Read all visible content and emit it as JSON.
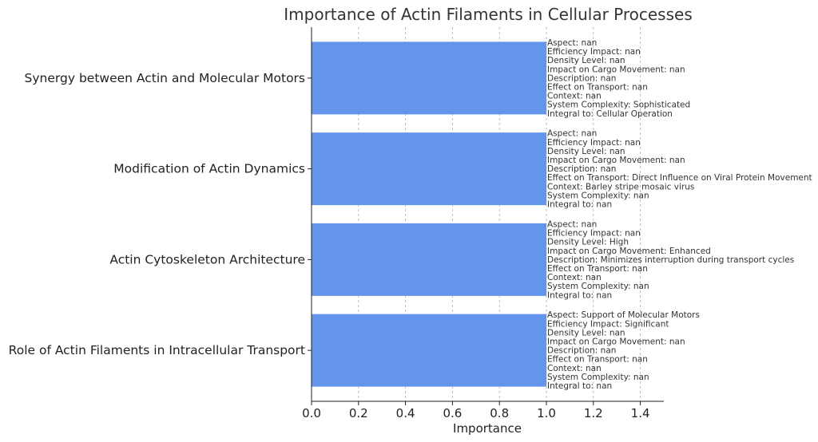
{
  "chart_data": {
    "type": "bar",
    "orientation": "horizontal",
    "title": "Importance of Actin Filaments in Cellular Processes",
    "xlabel": "Importance",
    "ylabel": "",
    "xlim": [
      0,
      1.5
    ],
    "xticks": [
      "0.0",
      "0.2",
      "0.4",
      "0.6",
      "0.8",
      "1.0",
      "1.2",
      "1.4"
    ],
    "xtick_values": [
      0,
      0.2,
      0.4,
      0.6,
      0.8,
      1.0,
      1.2,
      1.4
    ],
    "grid": true,
    "bar_color": "#6495ED",
    "categories": [
      "Role of Actin Filaments in Intracellular Transport",
      "Actin Cytoskeleton Architecture",
      "Modification of Actin Dynamics",
      "Synergy between Actin and Molecular Motors"
    ],
    "values": [
      1,
      1,
      1,
      1
    ],
    "annotations": [
      [
        "Aspect: Support of Molecular Motors",
        "Efficiency Impact: Significant",
        "Density Level: nan",
        "Impact on Cargo Movement: nan",
        "Description: nan",
        "Effect on Transport: nan",
        "Context: nan",
        "System Complexity: nan",
        "Integral to: nan"
      ],
      [
        "Aspect: nan",
        "Efficiency Impact: nan",
        "Density Level: High",
        "Impact on Cargo Movement: Enhanced",
        "Description: Minimizes interruption during transport cycles",
        "Effect on Transport: nan",
        "Context: nan",
        "System Complexity: nan",
        "Integral to: nan"
      ],
      [
        "Aspect: nan",
        "Efficiency Impact: nan",
        "Density Level: nan",
        "Impact on Cargo Movement: nan",
        "Description: nan",
        "Effect on Transport: Direct Influence on Viral Protein Movement",
        "Context: Barley stripe mosaic virus",
        "System Complexity: nan",
        "Integral to: nan"
      ],
      [
        "Aspect: nan",
        "Efficiency Impact: nan",
        "Density Level: nan",
        "Impact on Cargo Movement: nan",
        "Description: nan",
        "Effect on Transport: nan",
        "Context: nan",
        "System Complexity: Sophisticated",
        "Integral to: Cellular Operation"
      ]
    ]
  }
}
